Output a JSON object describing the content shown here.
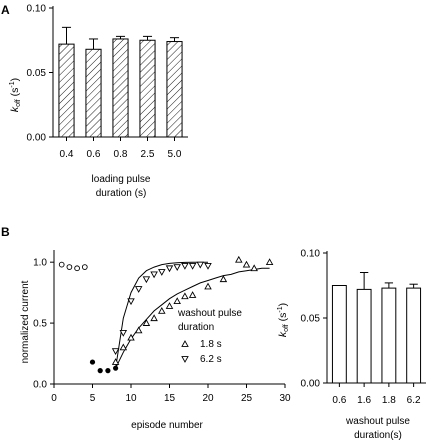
{
  "colors": {
    "ink": "#000000",
    "bar_fill": "#ffffff",
    "hatch": "#000000",
    "background": "#ffffff"
  },
  "chart_data": [
    {
      "panel": "A",
      "type": "bar",
      "pattern": "diagonal-hatch",
      "categories": [
        "0.4",
        "0.6",
        "0.8",
        "2.5",
        "5.0"
      ],
      "values": [
        0.072,
        0.068,
        0.076,
        0.075,
        0.074
      ],
      "errors": [
        0.013,
        0.008,
        0.002,
        0.003,
        0.003
      ],
      "ylabel_main": "k",
      "ylabel_sub": "off",
      "ylabel_unit": " (s",
      "ylabel_sup": "-1",
      "ylabel_close": ")",
      "xlabel_lines": [
        "loading pulse",
        "duration (s)"
      ],
      "ylim": [
        0,
        0.1
      ],
      "yticks": [
        0,
        0.05,
        0.1
      ],
      "ytick_labels": [
        "0.00",
        "0.05",
        "0.10"
      ]
    },
    {
      "panel": "B",
      "type": "scatter",
      "xlabel": "episode number",
      "ylabel": "normalized current",
      "xlim": [
        0,
        30
      ],
      "ylim": [
        0,
        1.1
      ],
      "xticks": [
        0,
        5,
        10,
        15,
        20,
        25,
        30
      ],
      "xtick_labels": [
        "0",
        "5",
        "10",
        "15",
        "20",
        "25",
        "30"
      ],
      "yticks": [
        0,
        0.5,
        1.0
      ],
      "ytick_labels": [
        "0.0",
        "0.5",
        "1.0"
      ],
      "legend_title_lines": [
        "washout pulse",
        "duration"
      ],
      "series": [
        {
          "name": "1.8 s",
          "marker": "triangle-up",
          "x": [
            8,
            9,
            10,
            11,
            12,
            13,
            14,
            15,
            16,
            17,
            18,
            20,
            22,
            24,
            25,
            26,
            28
          ],
          "y": [
            0.18,
            0.3,
            0.38,
            0.44,
            0.5,
            0.54,
            0.6,
            0.64,
            0.68,
            0.72,
            0.73,
            0.8,
            0.86,
            1.02,
            0.98,
            0.95,
            1.0
          ]
        },
        {
          "name": "6.2 s",
          "marker": "triangle-down",
          "x": [
            8,
            9,
            10,
            11,
            12,
            13,
            14,
            15,
            16,
            17,
            18,
            19,
            20
          ],
          "y": [
            0.27,
            0.42,
            0.68,
            0.78,
            0.86,
            0.9,
            0.92,
            0.95,
            0.96,
            0.97,
            0.97,
            0.98,
            0.97
          ]
        },
        {
          "marker": "filled-circle",
          "x": [
            5,
            6,
            7,
            8
          ],
          "y": [
            0.18,
            0.11,
            0.11,
            0.13
          ]
        },
        {
          "marker": "open-circle",
          "x": [
            1,
            2,
            3,
            4
          ],
          "y": [
            0.98,
            0.96,
            0.95,
            0.96
          ]
        }
      ],
      "fits": [
        {
          "x": [
            8,
            9,
            10,
            11,
            12,
            13,
            14,
            15,
            16,
            17,
            18,
            19,
            20,
            21,
            22,
            23,
            24,
            25,
            26,
            27,
            28
          ],
          "y": [
            0.13,
            0.26,
            0.37,
            0.46,
            0.53,
            0.6,
            0.65,
            0.7,
            0.74,
            0.77,
            0.8,
            0.83,
            0.85,
            0.87,
            0.89,
            0.9,
            0.92,
            0.93,
            0.94,
            0.95,
            0.95
          ]
        },
        {
          "x": [
            8,
            9,
            10,
            11,
            12,
            13,
            14,
            15,
            16,
            17,
            18,
            19,
            20
          ],
          "y": [
            0.13,
            0.54,
            0.75,
            0.87,
            0.93,
            0.96,
            0.98,
            0.99,
            0.995,
            0.998,
            1.0,
            1.0,
            1.0
          ]
        }
      ]
    },
    {
      "panel": "B-right",
      "type": "bar",
      "pattern": "none",
      "categories": [
        "0.6",
        "1.6",
        "1.8",
        "6.2"
      ],
      "values": [
        0.075,
        0.072,
        0.073,
        0.073
      ],
      "errors": [
        0,
        0.013,
        0.004,
        0.003
      ],
      "ylabel_main": "k",
      "ylabel_sub": "off",
      "ylabel_unit": " (s",
      "ylabel_sup": "-1",
      "ylabel_close": ")",
      "xlabel_lines": [
        "washout pulse",
        "duration(s)"
      ],
      "ylim": [
        0,
        0.1
      ],
      "yticks": [
        0,
        0.05,
        0.1
      ],
      "ytick_labels": [
        "0.00",
        "0.05",
        "0.10"
      ]
    }
  ],
  "panel_labels": {
    "a": "A",
    "b": "B"
  }
}
